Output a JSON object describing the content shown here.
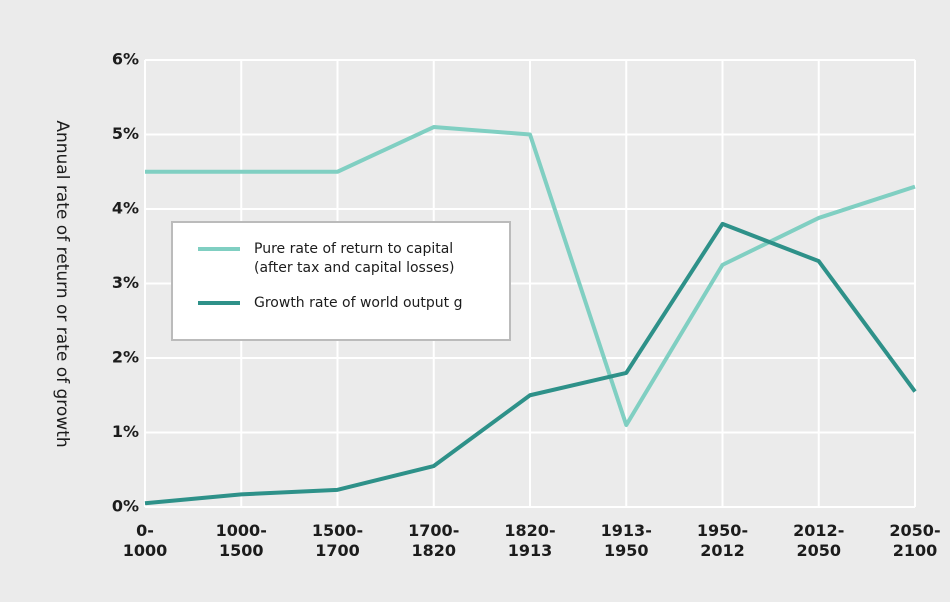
{
  "chart_data": {
    "type": "line",
    "ylabel": "Annual rate of return or rate of growth",
    "categories": [
      "0-1000",
      "1000-1500",
      "1500-1700",
      "1700-1820",
      "1820-1913",
      "1913-1950",
      "1950-2012",
      "2012-2050",
      "2050-2100"
    ],
    "series": [
      {
        "name": "Pure rate of return to capital (after tax and capital losses)",
        "color": "#80cfc2",
        "values": [
          4.5,
          4.5,
          4.5,
          5.1,
          5.0,
          1.1,
          3.25,
          3.88,
          4.3
        ]
      },
      {
        "name": "Growth rate of world output g",
        "color": "#2e9189",
        "values": [
          0.05,
          0.17,
          0.23,
          0.55,
          1.5,
          1.8,
          3.8,
          3.3,
          1.55
        ]
      }
    ],
    "ylim": [
      0,
      6
    ],
    "yticks": [
      {
        "value": 0,
        "label": "0%"
      },
      {
        "value": 1,
        "label": "1%"
      },
      {
        "value": 2,
        "label": "2%"
      },
      {
        "value": 3,
        "label": "3%"
      },
      {
        "value": 4,
        "label": "4%"
      },
      {
        "value": 5,
        "label": "5%"
      },
      {
        "value": 6,
        "label": "6%"
      }
    ],
    "grid": true,
    "legend": "upper left"
  }
}
